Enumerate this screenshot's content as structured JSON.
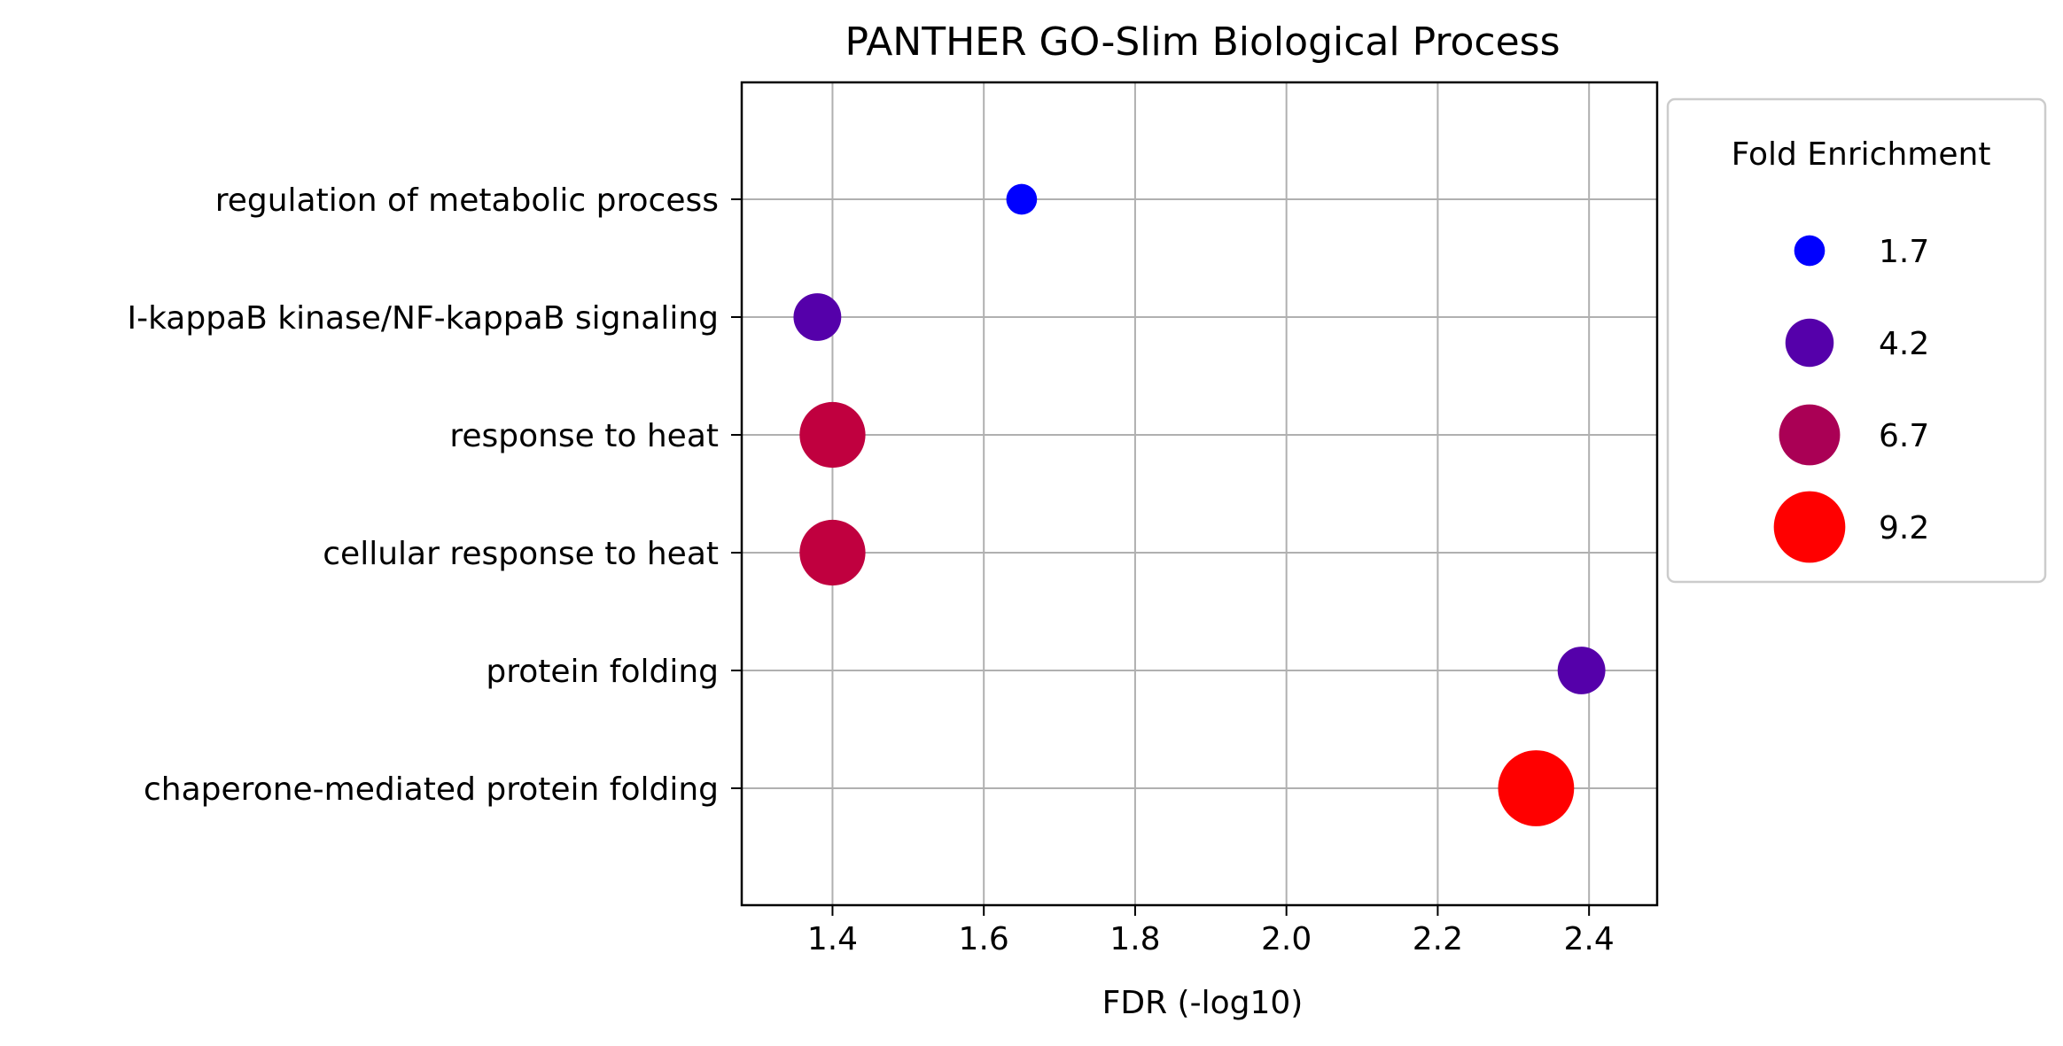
{
  "chart_data": {
    "type": "scatter",
    "title": "PANTHER GO-Slim Biological Process",
    "xlabel": "FDR (-log10)",
    "ylabel": "",
    "xlim": [
      1.28,
      2.49
    ],
    "xticks": [
      1.4,
      1.6,
      1.8,
      2.0,
      2.2,
      2.4
    ],
    "xtick_labels": [
      "1.4",
      "1.6",
      "1.8",
      "2.0",
      "2.2",
      "2.4"
    ],
    "grid": true,
    "categories": [
      "regulation of metabolic process",
      "I-kappaB kinase/NF-kappaB signaling",
      "response to heat",
      "cellular response to heat",
      "protein folding",
      "chaperone-mediated protein folding"
    ],
    "points": [
      {
        "category": "regulation of metabolic process",
        "x": 1.65,
        "fold_enrichment": 1.7,
        "color": "#0000ff"
      },
      {
        "category": "I-kappaB kinase/NF-kappaB signaling",
        "x": 1.38,
        "fold_enrichment": 4.1,
        "color": "#5500aa"
      },
      {
        "category": "response to heat",
        "x": 1.4,
        "fold_enrichment": 7.8,
        "color": "#c0003f"
      },
      {
        "category": "cellular response to heat",
        "x": 1.4,
        "fold_enrichment": 7.8,
        "color": "#c0003f"
      },
      {
        "category": "protein folding",
        "x": 2.39,
        "fold_enrichment": 4.1,
        "color": "#5500aa"
      },
      {
        "category": "chaperone-mediated protein folding",
        "x": 2.33,
        "fold_enrichment": 10.4,
        "color": "#ff0000"
      }
    ],
    "legend": {
      "title": "Fold Enrichment",
      "placement": "outside-right-top",
      "entries": [
        {
          "label": "1.7",
          "value": 1.7,
          "color": "#0000ff"
        },
        {
          "label": "4.2",
          "value": 4.2,
          "color": "#5500aa"
        },
        {
          "label": "6.7",
          "value": 6.7,
          "color": "#aa0055"
        },
        {
          "label": "9.2",
          "value": 9.2,
          "color": "#ff0000"
        }
      ]
    }
  }
}
